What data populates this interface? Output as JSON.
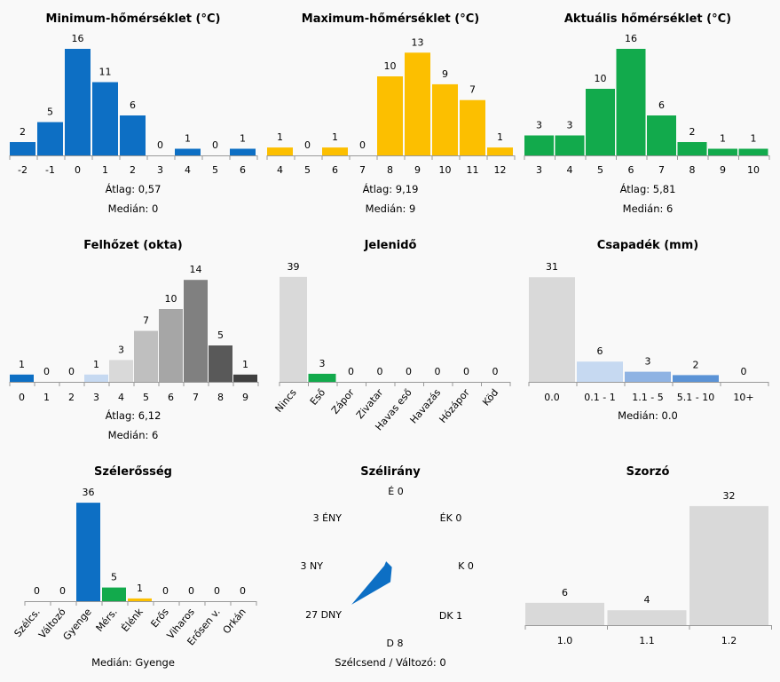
{
  "colors": {
    "blue": "#0d6fc4",
    "yellow": "#fcbf00",
    "green": "#12aa4c",
    "gray": "#d9d9d9",
    "light_blue": "#c6d9f1",
    "mid_blue": "#8fb3e3",
    "blue2": "#5b93d6",
    "cloud_grays": [
      "#0d6fc4",
      "#d9d9d9",
      "#d9d9d9",
      "#c6d9f1",
      "#d9d9d9",
      "#bfbfbf",
      "#a6a6a6",
      "#808080",
      "#595959",
      "#404040"
    ],
    "axis": "#999999"
  },
  "chart_data": [
    {
      "id": "min_temp",
      "type": "bar",
      "title": "Minimum-hőmérséklet (°C)",
      "categories": [
        "-2",
        "-1",
        "0",
        "1",
        "2",
        "3",
        "4",
        "5",
        "6"
      ],
      "values": [
        2,
        5,
        16,
        11,
        6,
        0,
        1,
        0,
        1
      ],
      "value_labels": [
        "2",
        "5",
        "16",
        "11",
        "6",
        "0",
        "1",
        "0",
        "1"
      ],
      "stats": [
        "Átlag: 0,57",
        "Medián: 0"
      ]
    },
    {
      "id": "max_temp",
      "type": "bar",
      "title": "Maximum-hőmérséklet (°C)",
      "categories": [
        "4",
        "5",
        "6",
        "7",
        "8",
        "9",
        "10",
        "11",
        "12"
      ],
      "values": [
        1,
        0,
        1,
        0,
        10,
        13,
        9,
        7,
        1
      ],
      "value_labels": [
        "1",
        "0",
        "1",
        "0",
        "10",
        "13",
        "9",
        "7",
        "1"
      ],
      "stats": [
        "Átlag: 9,19",
        "Medián: 9"
      ]
    },
    {
      "id": "cur_temp",
      "type": "bar",
      "title": "Aktuális hőmérséklet (°C)",
      "categories": [
        "3",
        "4",
        "5",
        "6",
        "7",
        "8",
        "9",
        "10"
      ],
      "values": [
        3,
        3,
        10,
        16,
        6,
        2,
        1,
        1
      ],
      "value_labels": [
        "3",
        "3",
        "10",
        "16",
        "6",
        "2",
        "1",
        "1"
      ],
      "stats": [
        "Átlag: 5,81",
        "Medián: 6"
      ]
    },
    {
      "id": "cloud",
      "type": "bar",
      "title": "Felhőzet (okta)",
      "categories": [
        "0",
        "1",
        "2",
        "3",
        "4",
        "5",
        "6",
        "7",
        "8",
        "9"
      ],
      "values": [
        1,
        0,
        0,
        1,
        3,
        7,
        10,
        14,
        5,
        1
      ],
      "value_labels": [
        "1",
        "0",
        "0",
        "1",
        "3",
        "7",
        "10",
        "14",
        "5",
        "1"
      ],
      "stats": [
        "Átlag: 6,12",
        "Medián: 6"
      ]
    },
    {
      "id": "weather",
      "type": "bar",
      "title": "Jelenidő",
      "categories": [
        "Nincs",
        "Eső",
        "Zápor",
        "Zivatar",
        "Havas eső",
        "Havazás",
        "Hózápor",
        "Köd"
      ],
      "values": [
        39,
        3,
        0,
        0,
        0,
        0,
        0,
        0
      ],
      "value_labels": [
        "39",
        "3",
        "0",
        "0",
        "0",
        "0",
        "0",
        "0"
      ],
      "stats": []
    },
    {
      "id": "precip",
      "type": "bar",
      "title": "Csapadék (mm)",
      "categories": [
        "0.0",
        "0.1 - 1",
        "1.1 - 5",
        "5.1 - 10",
        "10+"
      ],
      "values": [
        31,
        6,
        3,
        2,
        0
      ],
      "value_labels": [
        "31",
        "6",
        "3",
        "2",
        "0"
      ],
      "stats": [
        "Medián: 0.0"
      ]
    },
    {
      "id": "wind_strength",
      "type": "bar",
      "title": "Szélerősség",
      "categories": [
        "Szélcs.",
        "Változó",
        "Gyenge",
        "Mérs.",
        "Élénk",
        "Erős",
        "Viharos",
        "Erősen v.",
        "Orkán"
      ],
      "values": [
        0,
        0,
        36,
        5,
        1,
        0,
        0,
        0,
        0
      ],
      "value_labels": [
        "0",
        "0",
        "36",
        "5",
        "1",
        "0",
        "0",
        "0",
        "0"
      ],
      "stats": [
        "Medián: Gyenge"
      ]
    },
    {
      "id": "wind_dir",
      "type": "radar",
      "title": "Szélirány",
      "directions": [
        "É",
        "ÉK",
        "K",
        "DK",
        "D",
        "DNY",
        "NY",
        "ÉNY"
      ],
      "values": [
        0,
        0,
        0,
        1,
        8,
        27,
        3,
        3
      ],
      "labels": [
        "É 0",
        "ÉK 0",
        "K 0",
        "DK 1",
        "D 8",
        "27 DNY",
        "3 NY",
        "3 ÉNY"
      ],
      "footer": "Szélcsend / Változó: 0"
    },
    {
      "id": "multiplier",
      "type": "bar",
      "title": "Szorzó",
      "categories": [
        "1.0",
        "1.1",
        "1.2"
      ],
      "values": [
        6,
        4,
        32
      ],
      "value_labels": [
        "6",
        "4",
        "32"
      ],
      "stats": []
    }
  ]
}
